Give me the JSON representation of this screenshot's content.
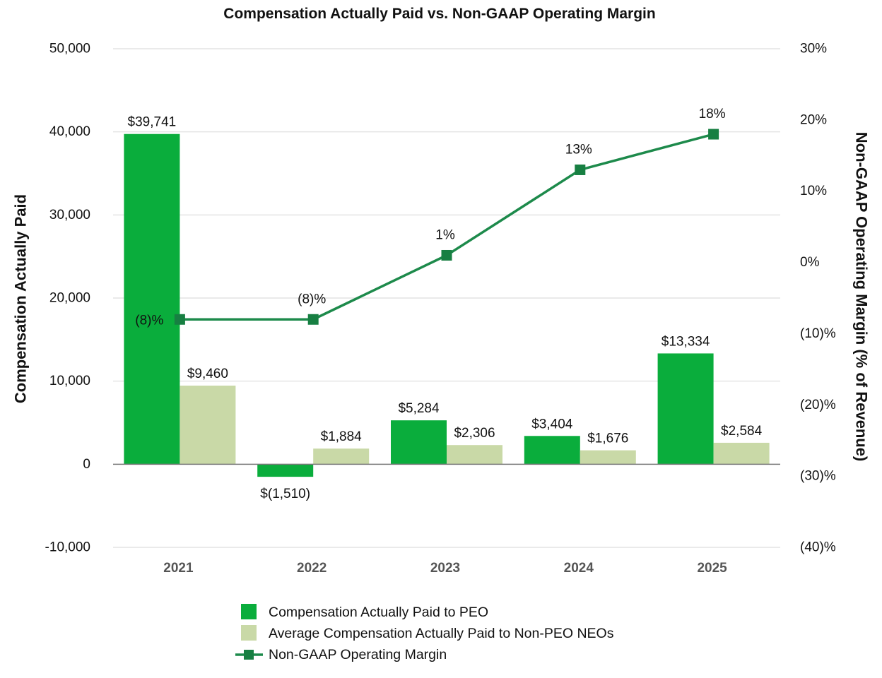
{
  "chart_data": {
    "type": "bar",
    "title": "Compensation Actually Paid vs. Non-GAAP Operating Margin",
    "categories": [
      "2021",
      "2022",
      "2023",
      "2024",
      "2025"
    ],
    "y_left": {
      "label": "Compensation Actually Paid",
      "range": [
        -10000,
        50000
      ],
      "ticks": [
        50000,
        40000,
        30000,
        20000,
        10000,
        0,
        -10000
      ],
      "tick_labels": [
        "50,000",
        "40,000",
        "30,000",
        "20,000",
        "10,000",
        "0",
        "-10,000"
      ]
    },
    "y_right": {
      "label": "Non-GAAP Operating Margin (% of Revenue)",
      "range": [
        -40,
        30
      ],
      "ticks": [
        30,
        20,
        10,
        0,
        -10,
        -20,
        -30,
        -40
      ],
      "tick_labels": [
        "30%",
        "20%",
        "10%",
        "0%",
        "(10)%",
        "(20)%",
        "(30)%",
        "(40)%"
      ]
    },
    "bar_series": [
      {
        "name": "Compensation Actually Paid to PEO",
        "color": "#0aad3c",
        "values": [
          39741,
          -1510,
          5284,
          3404,
          13334
        ],
        "labels": [
          "$39,741",
          "$(1,510)",
          "$5,284",
          "$3,404",
          "$13,334"
        ]
      },
      {
        "name": "Average Compensation Actually Paid to Non-PEO NEOs",
        "color": "#c9d9a7",
        "values": [
          9460,
          1884,
          2306,
          1676,
          2584
        ],
        "labels": [
          "$9,460",
          "$1,884",
          "$2,306",
          "$1,676",
          "$2,584"
        ]
      }
    ],
    "line_series": {
      "name": "Non-GAAP Operating Margin",
      "color": "#1d8a4b",
      "values": [
        -8,
        -8,
        1,
        13,
        18
      ],
      "labels": [
        "(8)%",
        "(8)%",
        "1%",
        "13%",
        "18%"
      ],
      "label_position": [
        "left",
        "top",
        "top",
        "top",
        "top"
      ]
    },
    "grid": true,
    "legend": "bottom"
  }
}
